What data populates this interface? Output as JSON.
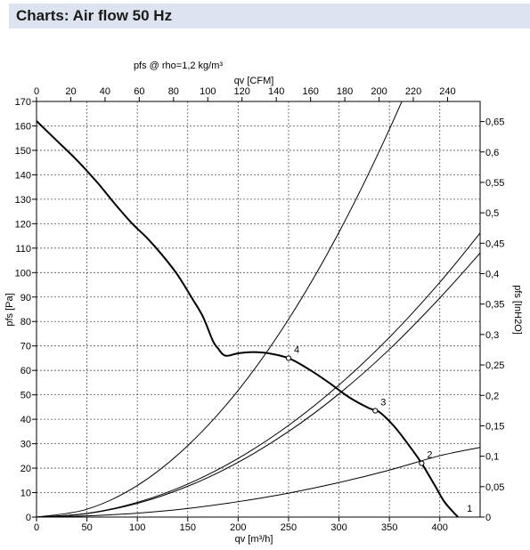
{
  "header": {
    "title": "Charts: Air flow 50 Hz"
  },
  "chart_data": {
    "type": "line",
    "title": "pfs @ rho=1,2 kg/m³",
    "x_bottom": {
      "label": "qv [m³/h]",
      "range": [
        0,
        440
      ],
      "ticks": [
        0,
        50,
        100,
        150,
        200,
        250,
        300,
        350,
        400
      ]
    },
    "x_top": {
      "label": "qv [CFM]",
      "range": [
        0,
        259
      ],
      "ticks": [
        0,
        20,
        40,
        60,
        80,
        100,
        120,
        140,
        160,
        180,
        200,
        220,
        240
      ]
    },
    "y_left": {
      "label": "pfs [Pa]",
      "range": [
        0,
        170
      ],
      "ticks": [
        0,
        10,
        20,
        30,
        40,
        50,
        60,
        70,
        80,
        90,
        100,
        110,
        120,
        130,
        140,
        150,
        160,
        170
      ]
    },
    "y_right": {
      "label": "pfs [InH2O]",
      "range": [
        0,
        0.683
      ],
      "ticks": [
        "0",
        "0,05",
        "0,1",
        "0,15",
        "0,2",
        "0,25",
        "0,3",
        "0,35",
        "0,4",
        "0,45",
        "0,5",
        "0,55",
        "0,6",
        "0,65"
      ]
    },
    "grid": true,
    "fan_curve": {
      "x": [
        0,
        20,
        40,
        60,
        70,
        80,
        95,
        110,
        125,
        140,
        155,
        165,
        175,
        180,
        185,
        190,
        200,
        215,
        230,
        250,
        270,
        290,
        310,
        330,
        340,
        355,
        370,
        382,
        395,
        405,
        418
      ],
      "y": [
        162,
        154,
        146,
        137,
        132,
        127,
        120,
        114,
        107,
        99,
        89,
        82,
        72,
        69,
        66.5,
        66,
        67,
        67.5,
        67,
        65,
        60.5,
        55,
        49,
        44.5,
        43,
        37,
        29,
        22,
        13,
        6,
        0
      ]
    },
    "system_curves": [
      {
        "label": "1",
        "x": [
          0,
          50,
          100,
          150,
          200,
          250,
          300,
          350,
          400,
          440
        ],
        "y": [
          0,
          0.5,
          1.6,
          3.5,
          6.3,
          9.8,
          14.1,
          19.2,
          25.1,
          28.5
        ]
      },
      {
        "label": "2",
        "x": [
          0,
          50,
          100,
          150,
          200,
          250,
          300,
          350,
          400,
          440
        ],
        "y": [
          0,
          1.4,
          5.6,
          12.6,
          22.4,
          35,
          50.4,
          68.6,
          89.6,
          108
        ]
      },
      {
        "label": "3",
        "x": [
          0,
          50,
          100,
          150,
          200,
          250,
          300,
          350,
          400,
          440
        ],
        "y": [
          0,
          1.5,
          6.0,
          13.5,
          24.0,
          37.5,
          54.0,
          73.5,
          96.0,
          116.2
        ]
      },
      {
        "label": "4",
        "x": [
          0,
          50,
          100,
          150,
          200,
          250,
          300,
          350,
          400,
          440
        ],
        "y": [
          0,
          3.2,
          12.9,
          29.2,
          51.8,
          80.9,
          116.5,
          158.6,
          207.1,
          250.6
        ]
      }
    ],
    "operating_points": [
      {
        "label": "1",
        "x": 418,
        "y": 0
      },
      {
        "label": "2",
        "x": 382,
        "y": 22
      },
      {
        "label": "3",
        "x": 336,
        "y": 43.5
      },
      {
        "label": "4",
        "x": 250,
        "y": 65
      }
    ]
  }
}
